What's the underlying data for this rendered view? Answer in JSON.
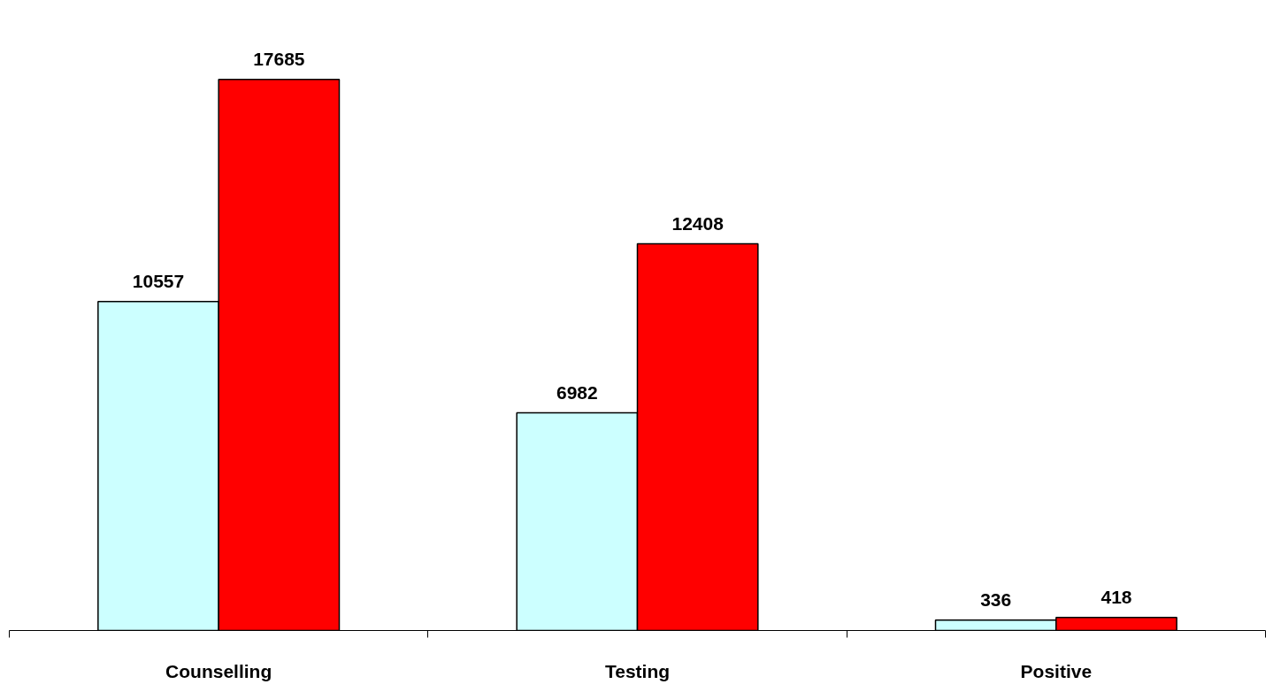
{
  "chart_data": {
    "type": "bar",
    "categories": [
      "Counselling",
      "Testing",
      "Positive"
    ],
    "series": [
      {
        "color": "#ccffff",
        "values": [
          10557,
          6982,
          336
        ]
      },
      {
        "color": "#ff0000",
        "values": [
          17685,
          12408,
          418
        ]
      }
    ],
    "data_labels": true,
    "grid": false
  }
}
